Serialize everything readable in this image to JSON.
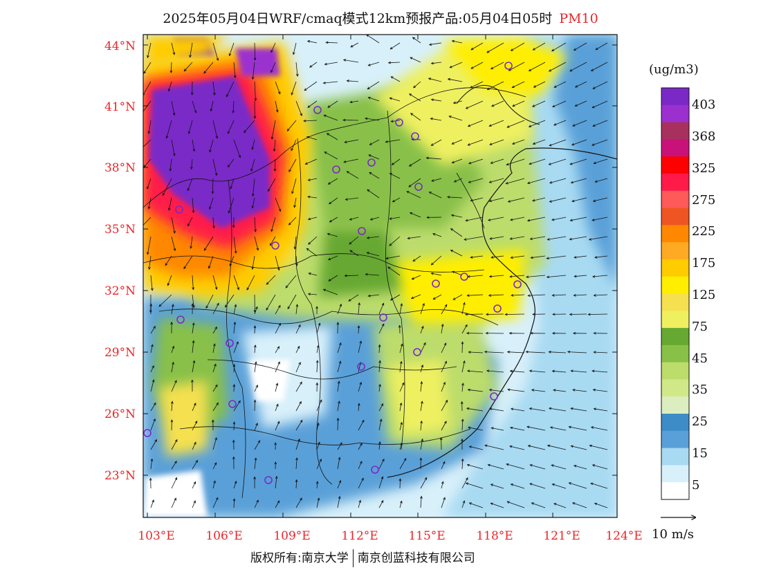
{
  "title": {
    "main": "2025年05月04日WRF/cmaq模式12km预报产品:05月04日05时",
    "pollutant": "PM10"
  },
  "lat_labels": [
    "44°N",
    "41°N",
    "38°N",
    "35°N",
    "32°N",
    "29°N",
    "26°N",
    "23°N"
  ],
  "lon_labels": [
    "103°E",
    "106°E",
    "109°E",
    "112°E",
    "115°E",
    "118°E",
    "121°E",
    "124°E"
  ],
  "colorbar": {
    "unit": "(ug/m3)",
    "labels": [
      "403",
      "368",
      "325",
      "275",
      "225",
      "175",
      "125",
      "75",
      "45",
      "35",
      "25",
      "15",
      "5"
    ],
    "colors_top_to_bottom": [
      "#7a29c7",
      "#9b30cf",
      "#a8305f",
      "#c8127a",
      "#ff0000",
      "#ff1a4a",
      "#ff5a5a",
      "#ee5522",
      "#ff8800",
      "#ffaa22",
      "#ffcc00",
      "#ffee00",
      "#f5e050",
      "#eef060",
      "#66a832",
      "#88c048",
      "#bcdc6c",
      "#d0e888",
      "#dceec0",
      "#3d8cc8",
      "#5aa0d8",
      "#a8daf2",
      "#d8f0fa",
      "#ffffff"
    ]
  },
  "wind": {
    "label": "10 m/s"
  },
  "footer": {
    "copyright": "版权所有:南京大学",
    "company": "南京创蓝科技有限公司"
  }
}
